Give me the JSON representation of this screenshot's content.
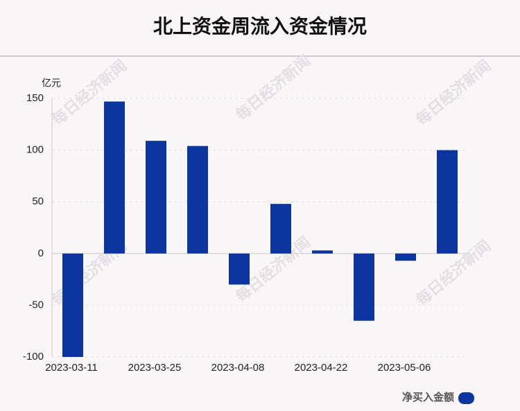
{
  "chart_data": {
    "type": "bar",
    "title": "北上资金周流入资金情况",
    "y_label": "亿元",
    "categories": [
      "2023-03-11",
      null,
      "2023-03-25",
      null,
      "2023-04-08",
      null,
      "2023-04-22",
      null,
      "2023-05-06",
      null
    ],
    "series": [
      {
        "name": "净买入金额",
        "color": "#0c35a0",
        "values": [
          -100,
          147,
          109,
          104,
          -30,
          48,
          3,
          -65,
          -7,
          100
        ]
      }
    ],
    "ylim": [
      -100,
      150
    ],
    "yticks": [
      -100,
      -50,
      0,
      50,
      100,
      150
    ],
    "grid": true,
    "legend": "bottom-right",
    "watermark": "每日经济新闻"
  }
}
